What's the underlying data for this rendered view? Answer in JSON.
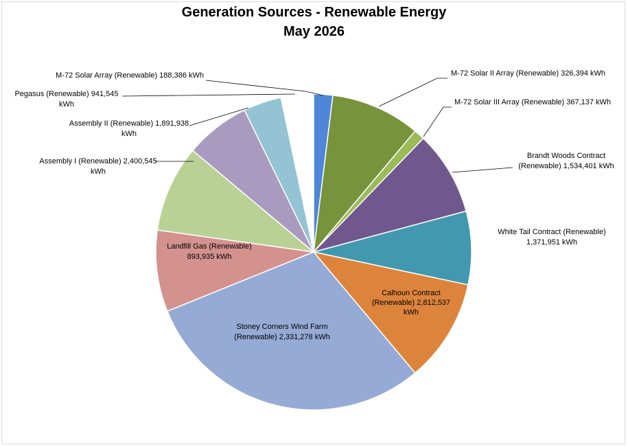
{
  "chart_data": {
    "type": "pie",
    "title": "Generation Sources - Renewable Energy",
    "subtitle": "May 2026",
    "unit": "kWh",
    "slices": [
      {
        "name": "M-72 Solar Array (Renewable)",
        "value": 188386,
        "value_label": "188,386",
        "color": "#4f86d8"
      },
      {
        "name": "M-72 Solar II Array (Renewable)",
        "value": 326394,
        "value_label": "326,394",
        "color": "#77933c"
      },
      {
        "name": "M-72 Solar III Array (Renewable)",
        "value": 367137,
        "value_label": "367,137",
        "color": "#9bbb59"
      },
      {
        "name": "Brandt Woods Contract (Renewable)",
        "value": 1534401,
        "value_label": "1,534,401",
        "color": "#70588f"
      },
      {
        "name": "White Tail Contract (Renewable)",
        "value": 1371951,
        "value_label": "1,371,951",
        "color": "#4198af"
      },
      {
        "name": "Calhoun Contract (Renewable)",
        "value": 2812537,
        "value_label": "2,812,537",
        "color": "#dd843c"
      },
      {
        "name": "Stoney Corners Wind Farm (Renewable)",
        "value": 2331278,
        "value_label": "2,331,278",
        "color": "#95aad4"
      },
      {
        "name": "Landfill Gas (Renewable)",
        "value": 893935,
        "value_label": "893,935",
        "color": "#d4928f"
      },
      {
        "name": "Assembly I (Renewable)",
        "value": 2400545,
        "value_label": "2,400,545",
        "color": "#bad195"
      },
      {
        "name": "Assembly II (Renewable)",
        "value": 1891938,
        "value_label": "1,891,938",
        "color": "#a99bc0"
      },
      {
        "name": "Pegasus (Renewable)",
        "value": 941545,
        "value_label": "941,545",
        "color": "#93c3d4"
      }
    ],
    "start_angle_deg": 0,
    "direction": "clockwise",
    "legend": "none"
  }
}
